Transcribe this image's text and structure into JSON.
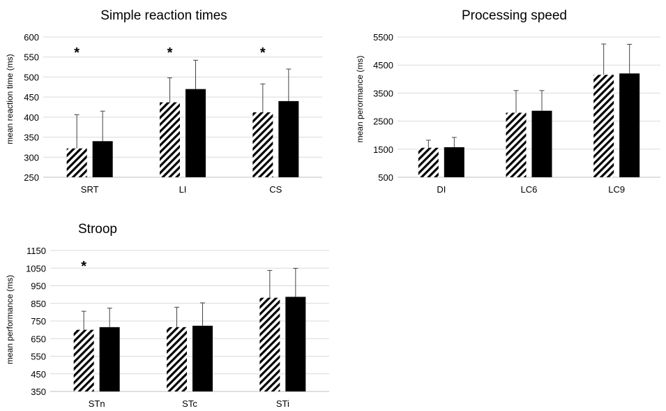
{
  "chart_data": [
    {
      "type": "bar",
      "title": "Simple reaction times",
      "xlabel": "",
      "ylabel": "mean reaction time (ms)",
      "ylim": [
        250,
        600
      ],
      "yticks": [
        250,
        300,
        350,
        400,
        450,
        500,
        550,
        600
      ],
      "categories": [
        "SRT",
        "LI",
        "CS"
      ],
      "series": [
        {
          "pattern": "hatched",
          "color": "#000000",
          "values": [
            322,
            437,
            412
          ],
          "error": [
            84,
            61,
            71
          ]
        },
        {
          "pattern": "solid",
          "color": "#000000",
          "values": [
            340,
            470,
            440
          ],
          "error": [
            75,
            72,
            80
          ]
        }
      ],
      "significance": [
        "*",
        "*",
        "*"
      ],
      "grid": true
    },
    {
      "type": "bar",
      "title": "Processing speed",
      "xlabel": "",
      "ylabel": "mean perormance (ms)",
      "ylim": [
        500,
        5500
      ],
      "yticks": [
        500,
        1500,
        2500,
        3500,
        4500,
        5500
      ],
      "categories": [
        "DI",
        "LC6",
        "LC9"
      ],
      "series": [
        {
          "pattern": "hatched",
          "color": "#000000",
          "values": [
            1550,
            2800,
            4150
          ],
          "error": [
            270,
            790,
            1100
          ]
        },
        {
          "pattern": "solid",
          "color": "#000000",
          "values": [
            1570,
            2870,
            4200
          ],
          "error": [
            350,
            720,
            1040
          ]
        }
      ],
      "significance": [
        "",
        "",
        ""
      ],
      "grid": true
    },
    {
      "type": "bar",
      "title": "Stroop",
      "xlabel": "",
      "ylabel": "mean performance (ms)",
      "ylim": [
        350,
        1150
      ],
      "yticks": [
        350,
        450,
        550,
        650,
        750,
        850,
        950,
        1050,
        1150
      ],
      "categories": [
        "STn",
        "STc",
        "STi"
      ],
      "series": [
        {
          "pattern": "hatched",
          "color": "#000000",
          "values": [
            700,
            715,
            882
          ],
          "error": [
            105,
            113,
            155
          ]
        },
        {
          "pattern": "solid",
          "color": "#000000",
          "values": [
            715,
            723,
            887
          ],
          "error": [
            108,
            130,
            162
          ]
        }
      ],
      "significance": [
        "*",
        "",
        ""
      ],
      "grid": true
    }
  ]
}
